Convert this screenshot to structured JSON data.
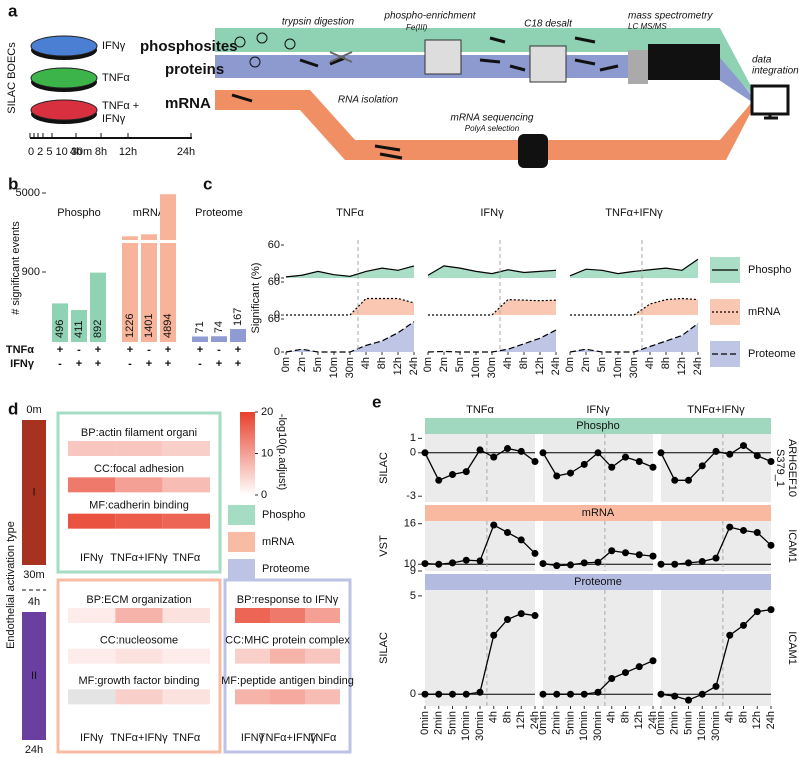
{
  "schematic": {
    "label": "a",
    "cell_source": "SILAC BOECs",
    "treatments": [
      [
        "IFNγ"
      ],
      [
        "TNFα"
      ],
      [
        "TNFα +",
        "IFNγ"
      ]
    ],
    "timeline": [
      "0 2 5 10 30m",
      "4h",
      "8h",
      "12h",
      "24h"
    ],
    "streams": [
      "phosphosites",
      "proteins",
      "mRNA"
    ],
    "steps": {
      "trypsin": [
        "trypsin digestion"
      ],
      "enrichment": [
        "phospho-enrichment",
        "Fe(III)"
      ],
      "desalt": [
        "C18 desalt"
      ],
      "ms": [
        "mass spectrometry",
        "LC MS/MS"
      ],
      "rna": [
        "RNA isolation"
      ],
      "seq": [
        "mRNA sequencing",
        "PolyA selection"
      ],
      "integration": [
        "data",
        "integration"
      ]
    }
  },
  "chart_data": [
    {
      "type": "bar",
      "label": "b",
      "ylabel": "# significant events",
      "ylim": [
        0,
        5000
      ],
      "ybreak": 900,
      "yticks": [
        900,
        5000
      ],
      "groups": [
        {
          "name": "Phospho",
          "color": "#8fd3b4",
          "values": [
            496,
            411,
            892
          ]
        },
        {
          "name": "mRNA",
          "color": "#f8b49a",
          "values": [
            1226,
            1401,
            4894
          ]
        },
        {
          "name": "Proteome",
          "color": "#8f9bd2",
          "values": [
            71,
            74,
            167
          ]
        }
      ],
      "conditions": [
        {
          "name": "TNFα",
          "signs": [
            "+",
            "-",
            "+"
          ]
        },
        {
          "name": "IFNγ",
          "signs": [
            "-",
            "+",
            "+"
          ]
        }
      ]
    },
    {
      "type": "area",
      "label": "c",
      "ylabel": "Significant (%)",
      "facets": [
        "TNFα",
        "IFNγ",
        "TNFα+IFNγ"
      ],
      "categories": [
        "0m",
        "2m",
        "5m",
        "10m",
        "30m",
        "4h",
        "8h",
        "12h",
        "24h"
      ],
      "ylim": [
        0,
        60
      ],
      "yticks": [
        0,
        60
      ],
      "series": [
        {
          "name": "Phospho",
          "color": "#8fd3b4",
          "linestyle": "solid",
          "values": [
            [
              2,
              5,
              12,
              6,
              3,
              12,
              18,
              14,
              22
            ],
            [
              5,
              22,
              18,
              12,
              8,
              15,
              10,
              12,
              14
            ],
            [
              4,
              16,
              14,
              8,
              12,
              15,
              18,
              14,
              34
            ]
          ]
        },
        {
          "name": "mRNA",
          "color": "#f8b49a",
          "linestyle": "dotted",
          "values": [
            [
              0,
              0,
              0,
              0,
              0,
              30,
              30,
              30,
              22
            ],
            [
              0,
              0,
              0,
              0,
              0,
              28,
              27,
              26,
              27
            ],
            [
              0,
              0,
              0,
              0,
              0,
              20,
              28,
              30,
              28
            ]
          ]
        },
        {
          "name": "Proteome",
          "color": "#aab3dc",
          "linestyle": "dashed",
          "values": [
            [
              0,
              5,
              0,
              0,
              0,
              12,
              20,
              35,
              55
            ],
            [
              0,
              1,
              0,
              0,
              0,
              5,
              15,
              25,
              40
            ],
            [
              0,
              5,
              0,
              0,
              0,
              10,
              20,
              30,
              52
            ]
          ]
        }
      ]
    },
    {
      "type": "heatmap",
      "label": "d",
      "ylabel": "Endothelial activation type",
      "na_color": "#e4e4e4",
      "colorbar": {
        "title": "-log10(p.adjust)",
        "lim": [
          0,
          20
        ],
        "ticks": [
          0,
          10,
          20
        ],
        "colors": [
          "#ffffff",
          "#e8402a"
        ]
      },
      "legend": [
        {
          "name": "Phospho",
          "color": "#a5dcc4"
        },
        {
          "name": "mRNA",
          "color": "#f8bba3"
        },
        {
          "name": "Proteome",
          "color": "#bcc3e4"
        }
      ],
      "phases": [
        {
          "name": "I",
          "color": "#a83220",
          "times": [
            "0m",
            "30m"
          ],
          "blocks": [
            {
              "color": "#a5dcc4",
              "columns": [
                "IFNγ",
                "TNFα+IFNγ",
                "TNFα"
              ],
              "terms": [
                "BP:actin filament organi",
                "CC:focal adhesion",
                "MF:cadherin binding"
              ],
              "values": [
                [
                  6,
                  6,
                  5
                ],
                [
                  14,
                  10,
                  7
                ],
                [
                  18,
                  17,
                  16
                ]
              ]
            }
          ]
        },
        {
          "name": "II",
          "color": "#6b3fa0",
          "times": [
            "4h",
            "24h"
          ],
          "blocks": [
            {
              "color": "#f8bba3",
              "columns": [
                "IFNγ",
                "TNFα+IFNγ",
                "TNFα"
              ],
              "terms": [
                "BP:ECM organization",
                "CC:nucleosome",
                "MF:growth factor binding"
              ],
              "values": [
                [
                  2,
                  8,
                  3
                ],
                [
                  2,
                  3,
                  2
                ],
                [
                  null,
                  5,
                  3
                ]
              ]
            },
            {
              "color": "#bcc3e4",
              "columns": [
                "IFNγ",
                "TNFα+IFNγ",
                "TNFα"
              ],
              "terms": [
                "BP:response to IFNγ",
                "CC:MHC protein complex",
                "MF:peptide antigen binding"
              ],
              "values": [
                [
                  16,
                  14,
                  10
                ],
                [
                  5,
                  8,
                  6
                ],
                [
                  8,
                  9,
                  7
                ]
              ]
            }
          ]
        }
      ]
    },
    {
      "type": "line",
      "label": "e",
      "facets": [
        "TNFα",
        "IFNγ",
        "TNFα+IFNγ"
      ],
      "categories": [
        "0min",
        "2min",
        "5min",
        "10min",
        "30min",
        "4h",
        "8h",
        "12h",
        "24h"
      ],
      "rows": [
        {
          "name": "Phospho",
          "color": "#9fd8be",
          "ylabel": "SILAC",
          "feature": [
            "ARHGEF10",
            "S379_1"
          ],
          "ylim": [
            -3.4,
            1.3
          ],
          "yticks": [
            -3,
            0,
            1
          ],
          "hline": 0,
          "values": [
            [
              0,
              -1.9,
              -1.5,
              -1.3,
              0.2,
              -0.3,
              0.3,
              0.1,
              -0.6
            ],
            [
              0,
              -1.6,
              -1.4,
              -0.8,
              0,
              -1.0,
              -0.3,
              -0.6,
              -1.0
            ],
            [
              0,
              -1.9,
              -1.9,
              -0.9,
              0.1,
              -0.1,
              0.5,
              -0.2,
              -0.6
            ]
          ]
        },
        {
          "name": "mRNA",
          "color": "#f8b9a0",
          "ylabel": "VST",
          "feature": [
            "ICAM1"
          ],
          "ylim": [
            9,
            16.4
          ],
          "yticks": [
            9,
            10,
            16
          ],
          "hline": 10,
          "values": [
            [
              10.1,
              10.0,
              10.2,
              10.6,
              10.5,
              15.8,
              14.7,
              13.6,
              11.6
            ],
            [
              10.1,
              9.8,
              9.9,
              10.2,
              10.3,
              12.0,
              11.7,
              11.4,
              11.2
            ],
            [
              10.0,
              10.0,
              10.2,
              10.4,
              10.9,
              15.5,
              15.0,
              14.7,
              12.8
            ]
          ]
        },
        {
          "name": "Proteome",
          "color": "#b3bce0",
          "ylabel": "SILAC",
          "feature": [
            "ICAM1"
          ],
          "ylim": [
            -0.6,
            5.3
          ],
          "yticks": [
            0,
            5
          ],
          "hline": 0,
          "values": [
            [
              0,
              0,
              0,
              0,
              0.1,
              3.0,
              3.8,
              4.1,
              4.0
            ],
            [
              0,
              0,
              0,
              0,
              0.1,
              0.8,
              1.1,
              1.4,
              1.7
            ],
            [
              0,
              -0.1,
              -0.3,
              0,
              0.4,
              3.0,
              3.5,
              4.2,
              4.3
            ]
          ]
        }
      ]
    }
  ]
}
